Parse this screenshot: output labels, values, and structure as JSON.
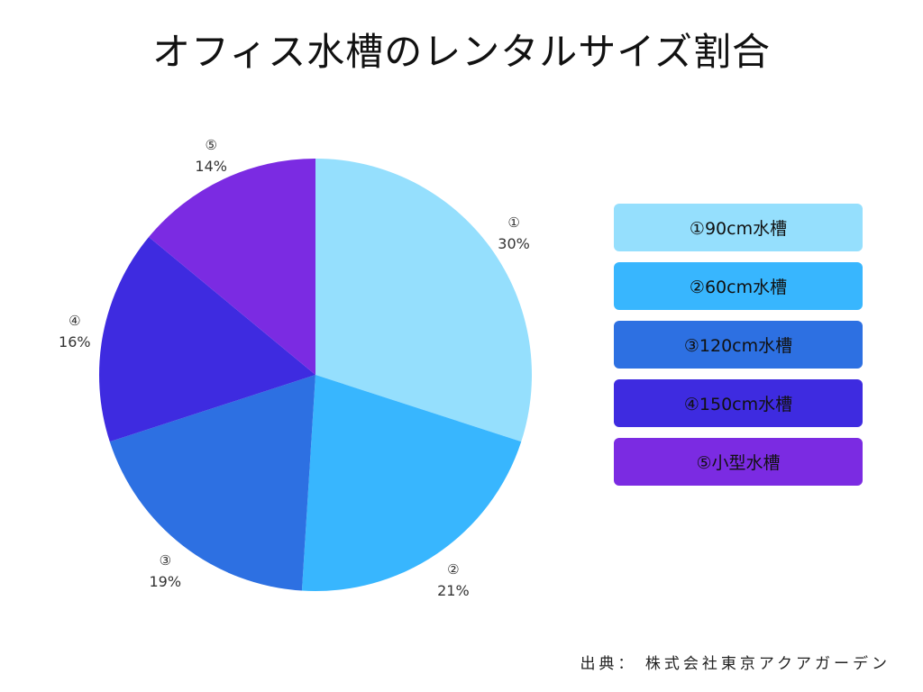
{
  "chart_data": {
    "type": "pie",
    "title": "オフィス水槽のレンタルサイズ割合",
    "slices": [
      {
        "marker": "①",
        "label": "①90cm水槽",
        "value": 30,
        "value_label": "30%",
        "color": "#95dffd"
      },
      {
        "marker": "②",
        "label": "②60cm水槽",
        "value": 21,
        "value_label": "21%",
        "color": "#38b6fe"
      },
      {
        "marker": "③",
        "label": "③120cm水槽",
        "value": 19,
        "value_label": "19%",
        "color": "#2d70e2"
      },
      {
        "marker": "④",
        "label": "④150cm水槽",
        "value": 16,
        "value_label": "16%",
        "color": "#3e2be0"
      },
      {
        "marker": "⑤",
        "label": "⑤小型水槽",
        "value": 14,
        "value_label": "14%",
        "color": "#7b2be2"
      }
    ],
    "legend_position": "right",
    "grid": false
  },
  "footer": {
    "source": "出典： 株式会社東京アクアガーデン"
  }
}
